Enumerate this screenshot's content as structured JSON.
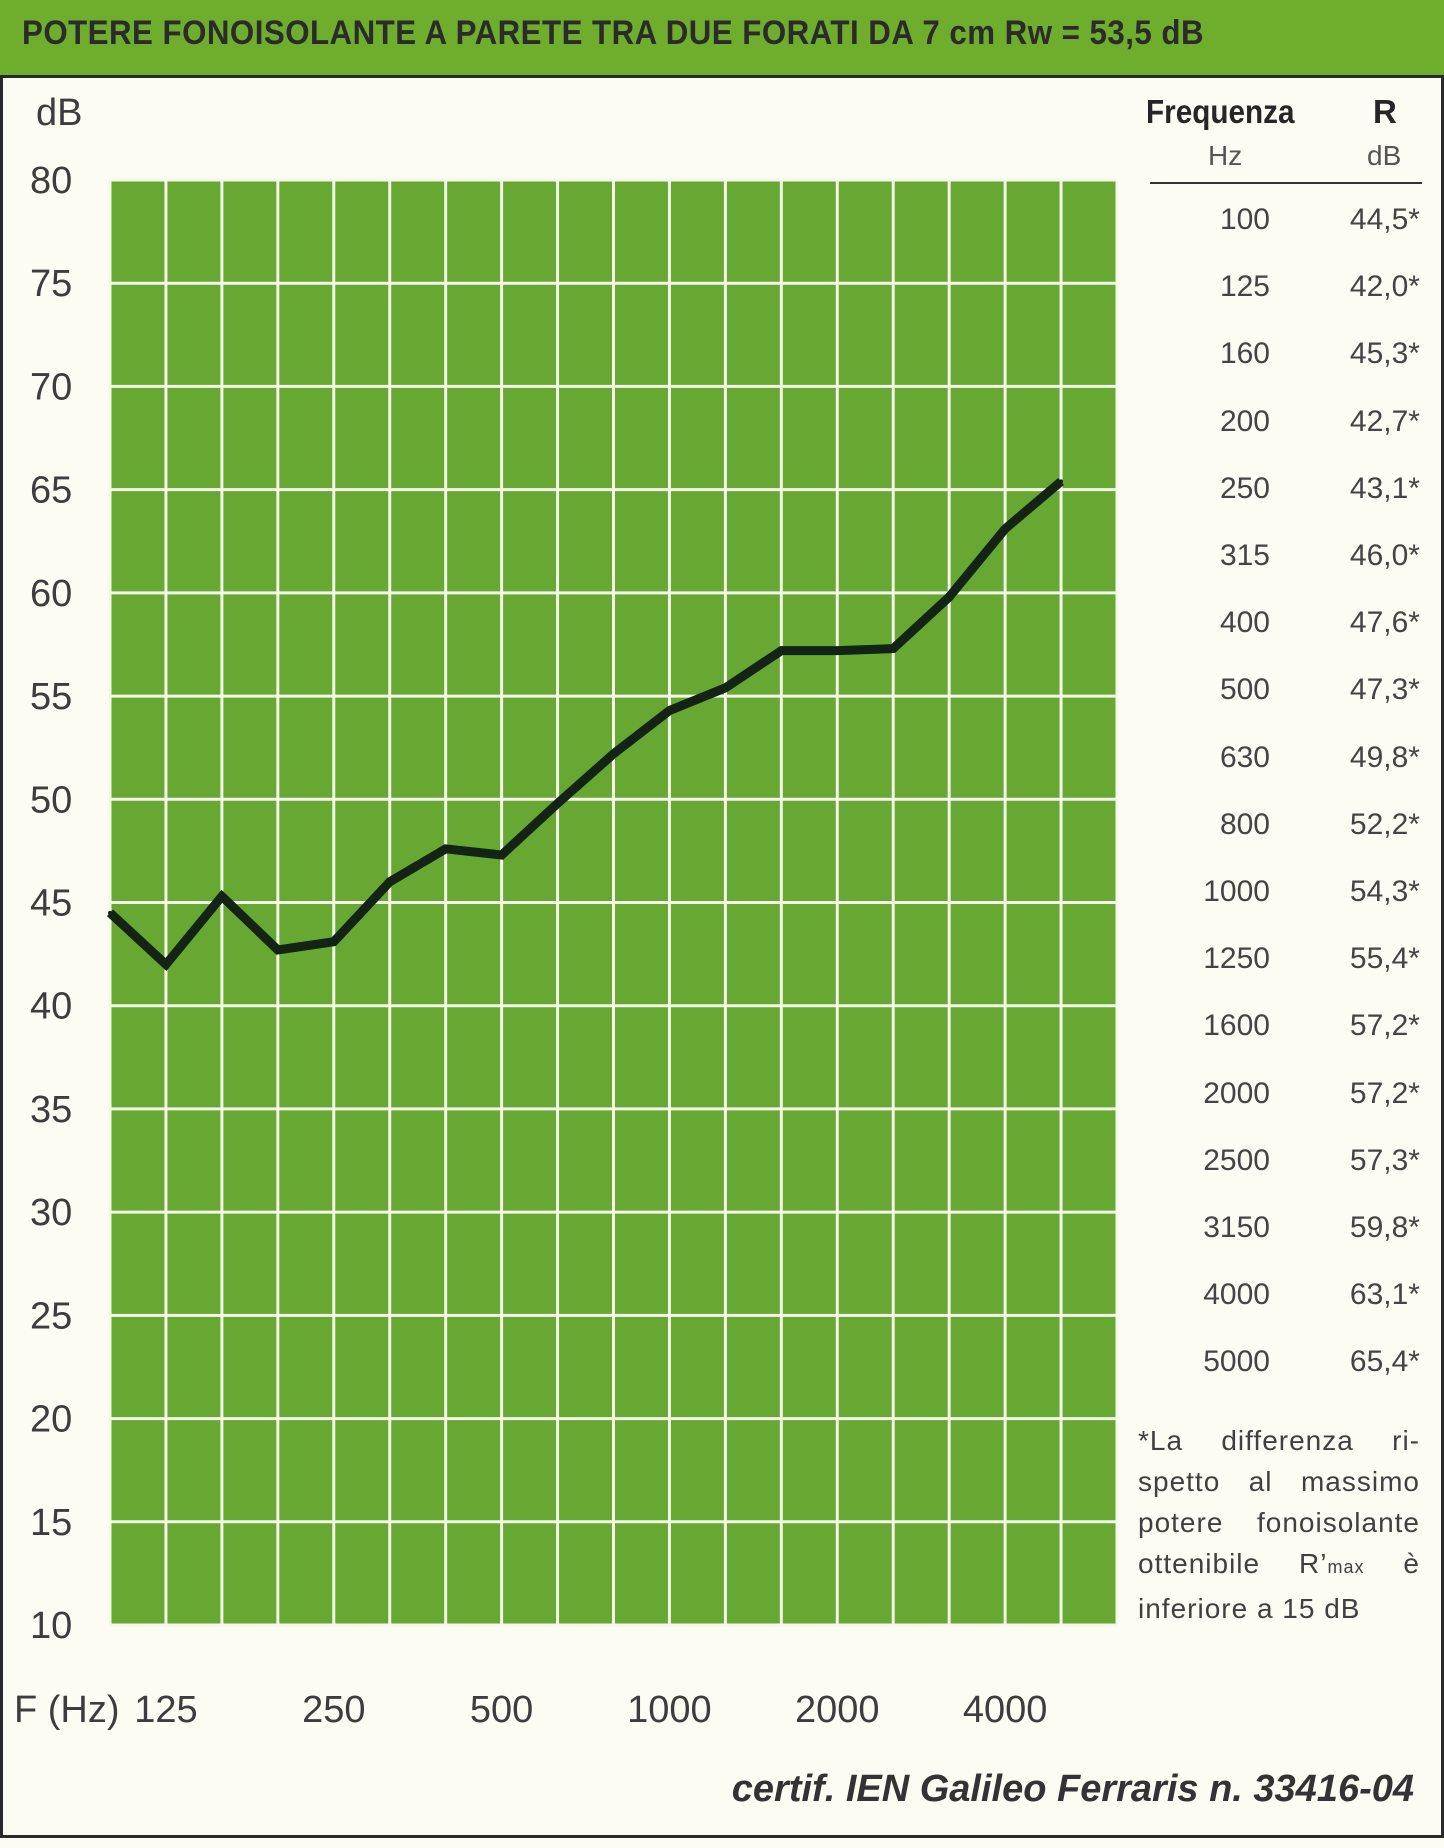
{
  "header": {
    "title": "POTERE FONOISOLANTE A PARETE TRA DUE FORATI DA 7 cm Rw = 53,5 dB"
  },
  "colors": {
    "header_green": "#6fae2d",
    "plot_green": "#67a832",
    "grid": "#f4f7ea",
    "curve": "#142414",
    "background": "#fdfcf2"
  },
  "chart_data": {
    "type": "line",
    "ylabel": "dB",
    "xlabel": "F (Hz)",
    "ylim": [
      10,
      80
    ],
    "yticks": [
      "80",
      "75",
      "70",
      "65",
      "60",
      "55",
      "50",
      "45",
      "40",
      "35",
      "30",
      "25",
      "20",
      "15",
      "10"
    ],
    "x_tick_labels": [
      "125",
      "250",
      "500",
      "1000",
      "2000",
      "4000"
    ],
    "x_scale": "log (third-octave bands)",
    "grid": true,
    "x": [
      100,
      125,
      160,
      200,
      250,
      315,
      400,
      500,
      630,
      800,
      1000,
      1250,
      1600,
      2000,
      2500,
      3150,
      4000,
      5000
    ],
    "series": [
      {
        "values": [
          44.5,
          42.0,
          45.3,
          42.7,
          43.1,
          46.0,
          47.6,
          47.3,
          49.8,
          52.2,
          54.3,
          55.4,
          57.2,
          57.2,
          57.3,
          59.8,
          63.1,
          65.4
        ]
      }
    ]
  },
  "table": {
    "col1_header": "Frequenza",
    "col1_unit": "Hz",
    "col2_header": "R",
    "col2_unit": "dB",
    "rows": [
      {
        "f": "100",
        "r": "44,5*"
      },
      {
        "f": "125",
        "r": "42,0*"
      },
      {
        "f": "160",
        "r": "45,3*"
      },
      {
        "f": "200",
        "r": "42,7*"
      },
      {
        "f": "250",
        "r": "43,1*"
      },
      {
        "f": "315",
        "r": "46,0*"
      },
      {
        "f": "400",
        "r": "47,6*"
      },
      {
        "f": "500",
        "r": "47,3*"
      },
      {
        "f": "630",
        "r": "49,8*"
      },
      {
        "f": "800",
        "r": "52,2*"
      },
      {
        "f": "1000",
        "r": "54,3*"
      },
      {
        "f": "1250",
        "r": "55,4*"
      },
      {
        "f": "1600",
        "r": "57,2*"
      },
      {
        "f": "2000",
        "r": "57,2*"
      },
      {
        "f": "2500",
        "r": "57,3*"
      },
      {
        "f": "3150",
        "r": "59,8*"
      },
      {
        "f": "4000",
        "r": "63,1*"
      },
      {
        "f": "5000",
        "r": "65,4*"
      }
    ]
  },
  "footnote": {
    "line1": "*La differenza ri-",
    "line2": "spetto al massimo",
    "line3": "potere fonoisolante",
    "line4_main": "ottenibile R’",
    "line4_sub": "max",
    "line4_end": " è",
    "line5": "inferiore a 15 dB"
  },
  "certification": "certif. IEN Galileo Ferraris n. 33416-04"
}
